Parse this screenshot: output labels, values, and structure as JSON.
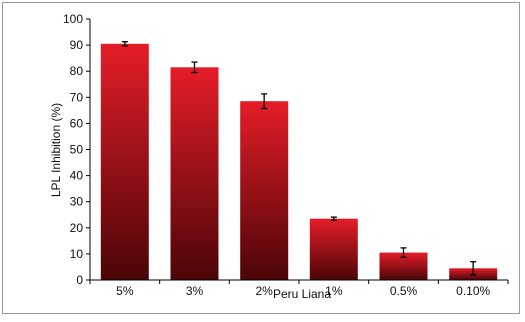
{
  "chart_data": {
    "type": "bar",
    "title": "",
    "xlabel": "Peru Liana",
    "ylabel": "LPL Inhibition (%)",
    "ylim": [
      0,
      100
    ],
    "yticks": [
      0,
      10,
      20,
      30,
      40,
      50,
      60,
      70,
      80,
      90,
      100
    ],
    "grid": false,
    "legend": "none",
    "categories": [
      "5%",
      "3%",
      "2%",
      "1%",
      "0.5%",
      "0.10%"
    ],
    "values": [
      90.5,
      81.5,
      68.5,
      23.5,
      10.5,
      4.5
    ],
    "errors": [
      0.8,
      2.0,
      2.8,
      0.6,
      1.8,
      2.5
    ],
    "colors": {
      "bar_light": "#e51d27",
      "bar_dark": "#4a0508",
      "axis": "#000000"
    }
  }
}
